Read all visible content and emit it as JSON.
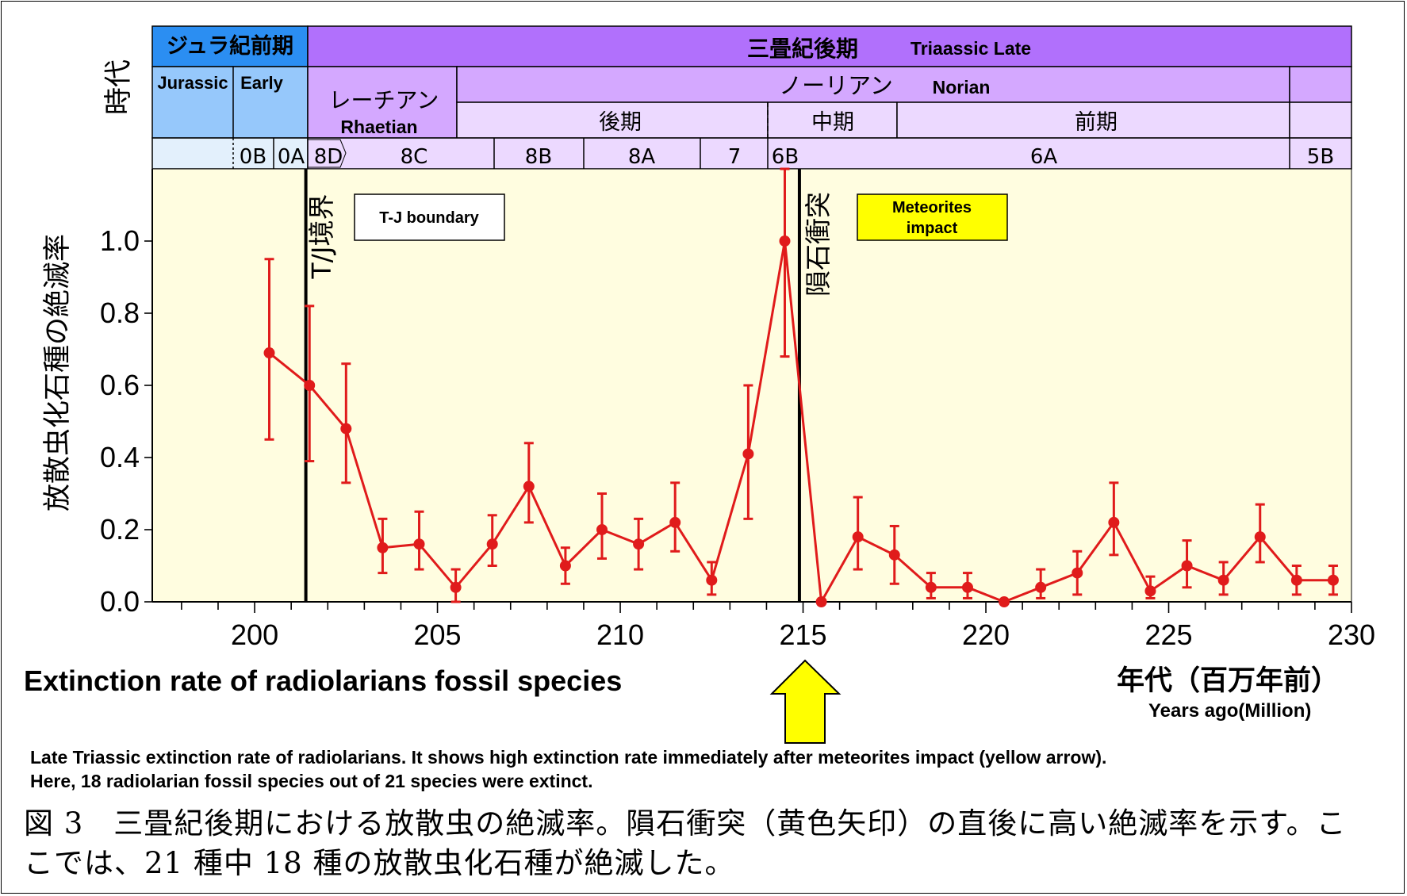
{
  "header": {
    "row1": {
      "jurassic_jp": "ジュラ紀前期",
      "triassic_jp": "三畳紀後期",
      "triassic_en": "Triaassic Late"
    },
    "row2": {
      "jurassic_en1": "Jurassic",
      "jurassic_en2": "Early",
      "rhaetian_jp": "レーチアン",
      "rhaetian_en": "Rhaetian",
      "norian_jp": "ノーリアン",
      "norian_en": "Norian"
    },
    "row3": {
      "late": "後期",
      "middle": "中期",
      "early": "前期"
    },
    "zones": [
      "0B",
      "0A",
      "8D",
      "8C",
      "8B",
      "8A",
      "7",
      "6B",
      "6A",
      "5B"
    ],
    "era_label": "時代"
  },
  "annotations": {
    "tj_vertical": "T/J境界",
    "tj_box": "T-J boundary",
    "meteor_vertical": "隕石衝突",
    "meteor_box_line1": "Meteorites",
    "meteor_box_line2": "impact"
  },
  "colors": {
    "jurassic_dark": "#2b8ef2",
    "jurassic_light": "#96c8fb",
    "triassic_dark": "#b170fc",
    "triassic_mid": "#d4a8ff",
    "triassic_light": "#ecd9ff",
    "plot_bg": "#fffde0",
    "series": "#e01b1b",
    "arrow": "#ffff00",
    "meteor_box": "#ffff00"
  },
  "chart_data": {
    "type": "line",
    "title": "Extinction rate of radiolarians fossil species",
    "ylabel": "放散虫化石種の絶滅率",
    "xlabel_jp": "年代（百万年前）",
    "xlabel_en": "Years ago(Million)",
    "xlim": [
      197.2,
      230
    ],
    "ylim": [
      0,
      1.2
    ],
    "xticks": [
      200,
      205,
      210,
      215,
      220,
      225,
      230
    ],
    "yticks": [
      "0.0",
      "0.2",
      "0.4",
      "0.6",
      "0.8",
      "1.0"
    ],
    "vlines": [
      201.4,
      214.9
    ],
    "series": [
      {
        "points": [
          {
            "x": 200.4,
            "y": 0.69,
            "lo": 0.45,
            "hi": 0.95
          },
          {
            "x": 201.5,
            "y": 0.6,
            "lo": 0.39,
            "hi": 0.82
          },
          {
            "x": 202.5,
            "y": 0.48,
            "lo": 0.33,
            "hi": 0.66
          },
          {
            "x": 203.5,
            "y": 0.15,
            "lo": 0.08,
            "hi": 0.23
          },
          {
            "x": 204.5,
            "y": 0.16,
            "lo": 0.09,
            "hi": 0.25
          },
          {
            "x": 205.5,
            "y": 0.04,
            "lo": 0.0,
            "hi": 0.09
          },
          {
            "x": 206.5,
            "y": 0.16,
            "lo": 0.1,
            "hi": 0.24
          },
          {
            "x": 207.5,
            "y": 0.32,
            "lo": 0.22,
            "hi": 0.44
          },
          {
            "x": 208.5,
            "y": 0.1,
            "lo": 0.05,
            "hi": 0.15
          },
          {
            "x": 209.5,
            "y": 0.2,
            "lo": 0.12,
            "hi": 0.3
          },
          {
            "x": 210.5,
            "y": 0.16,
            "lo": 0.09,
            "hi": 0.23
          },
          {
            "x": 211.5,
            "y": 0.22,
            "lo": 0.14,
            "hi": 0.33
          },
          {
            "x": 212.5,
            "y": 0.06,
            "lo": 0.02,
            "hi": 0.11
          },
          {
            "x": 213.5,
            "y": 0.41,
            "lo": 0.23,
            "hi": 0.6
          },
          {
            "x": 214.5,
            "y": 1.0,
            "lo": 0.68,
            "hi": 1.2
          },
          {
            "x": 215.5,
            "y": 0.0
          },
          {
            "x": 216.5,
            "y": 0.18,
            "lo": 0.09,
            "hi": 0.29
          },
          {
            "x": 217.5,
            "y": 0.13,
            "lo": 0.05,
            "hi": 0.21
          },
          {
            "x": 218.5,
            "y": 0.04,
            "lo": 0.01,
            "hi": 0.08
          },
          {
            "x": 219.5,
            "y": 0.04,
            "lo": 0.01,
            "hi": 0.08
          },
          {
            "x": 220.5,
            "y": 0.0
          },
          {
            "x": 221.5,
            "y": 0.04,
            "lo": 0.01,
            "hi": 0.09
          },
          {
            "x": 222.5,
            "y": 0.08,
            "lo": 0.02,
            "hi": 0.14
          },
          {
            "x": 223.5,
            "y": 0.22,
            "lo": 0.13,
            "hi": 0.33
          },
          {
            "x": 224.5,
            "y": 0.03,
            "lo": 0.01,
            "hi": 0.07
          },
          {
            "x": 225.5,
            "y": 0.1,
            "lo": 0.04,
            "hi": 0.17
          },
          {
            "x": 226.5,
            "y": 0.06,
            "lo": 0.02,
            "hi": 0.11
          },
          {
            "x": 227.5,
            "y": 0.18,
            "lo": 0.11,
            "hi": 0.27
          },
          {
            "x": 228.5,
            "y": 0.06,
            "lo": 0.02,
            "hi": 0.1
          },
          {
            "x": 229.5,
            "y": 0.06,
            "lo": 0.02,
            "hi": 0.1
          }
        ]
      }
    ]
  },
  "caption": {
    "en_line1": "Late Triassic extinction rate of radiolarians. It shows high extinction rate immediately after meteorites impact (yellow arrow).",
    "en_line2": "Here, 18 radiolarian fossil species out of 21 species were extinct.",
    "jp_line1": "図 3　三畳紀後期における放散虫の絶滅率。隕石衝突（黄色矢印）の直後に高い絶滅率を示す。こ",
    "jp_line2": "こでは、21 種中 18 種の放散虫化石種が絶滅した。"
  }
}
